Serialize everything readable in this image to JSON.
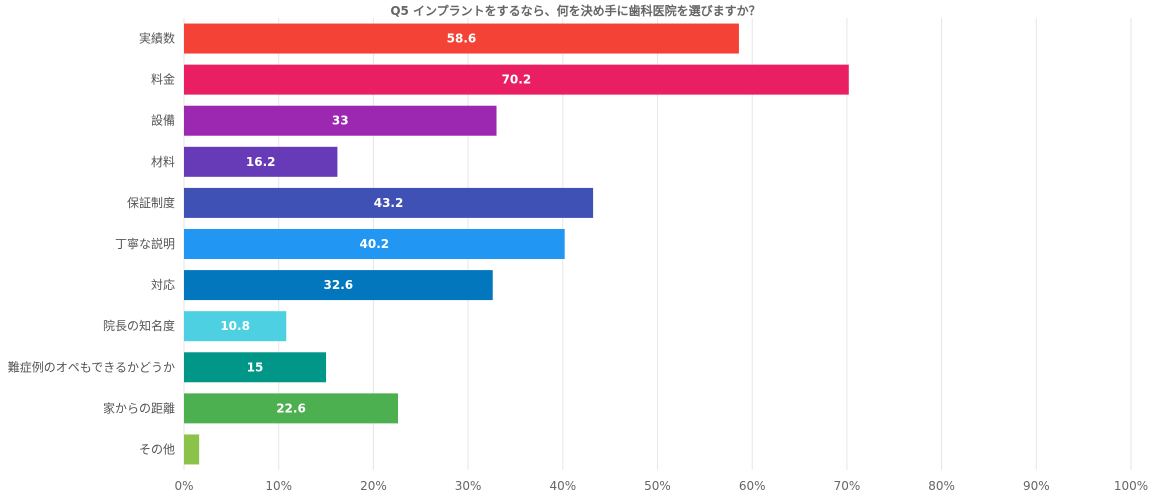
{
  "chart_data": {
    "type": "bar",
    "orientation": "horizontal",
    "title": "Q5 インプラントをするなら、何を決め手に歯科医院を選びますか？",
    "xlabel": "",
    "ylabel": "",
    "xlim": [
      0,
      100
    ],
    "ticks": [
      "0%",
      "10%",
      "20%",
      "30%",
      "40%",
      "50%",
      "60%",
      "70%",
      "80%",
      "90%",
      "100%"
    ],
    "grid": true,
    "legend": "none",
    "categories": [
      "実績数",
      "料金",
      "設備",
      "材料",
      "保証制度",
      "丁寧な説明",
      "対応",
      "院長の知名度",
      "難症例のオペもできるかどうか",
      "家からの距離",
      "その他"
    ],
    "values": [
      58.6,
      70.2,
      33,
      16.2,
      43.2,
      40.2,
      32.6,
      10.8,
      15,
      22.6,
      1.6
    ],
    "data_labels": [
      "58.6",
      "70.2",
      "33",
      "16.2",
      "43.2",
      "40.2",
      "32.6",
      "10.8",
      "15",
      "22.6",
      ""
    ],
    "colors": [
      "#f44336",
      "#e91e63",
      "#9c27b0",
      "#673ab7",
      "#3f51b5",
      "#2196f3",
      "#0277bd",
      "#4dd0e1",
      "#009688",
      "#4caf50",
      "#8bc34a"
    ]
  }
}
